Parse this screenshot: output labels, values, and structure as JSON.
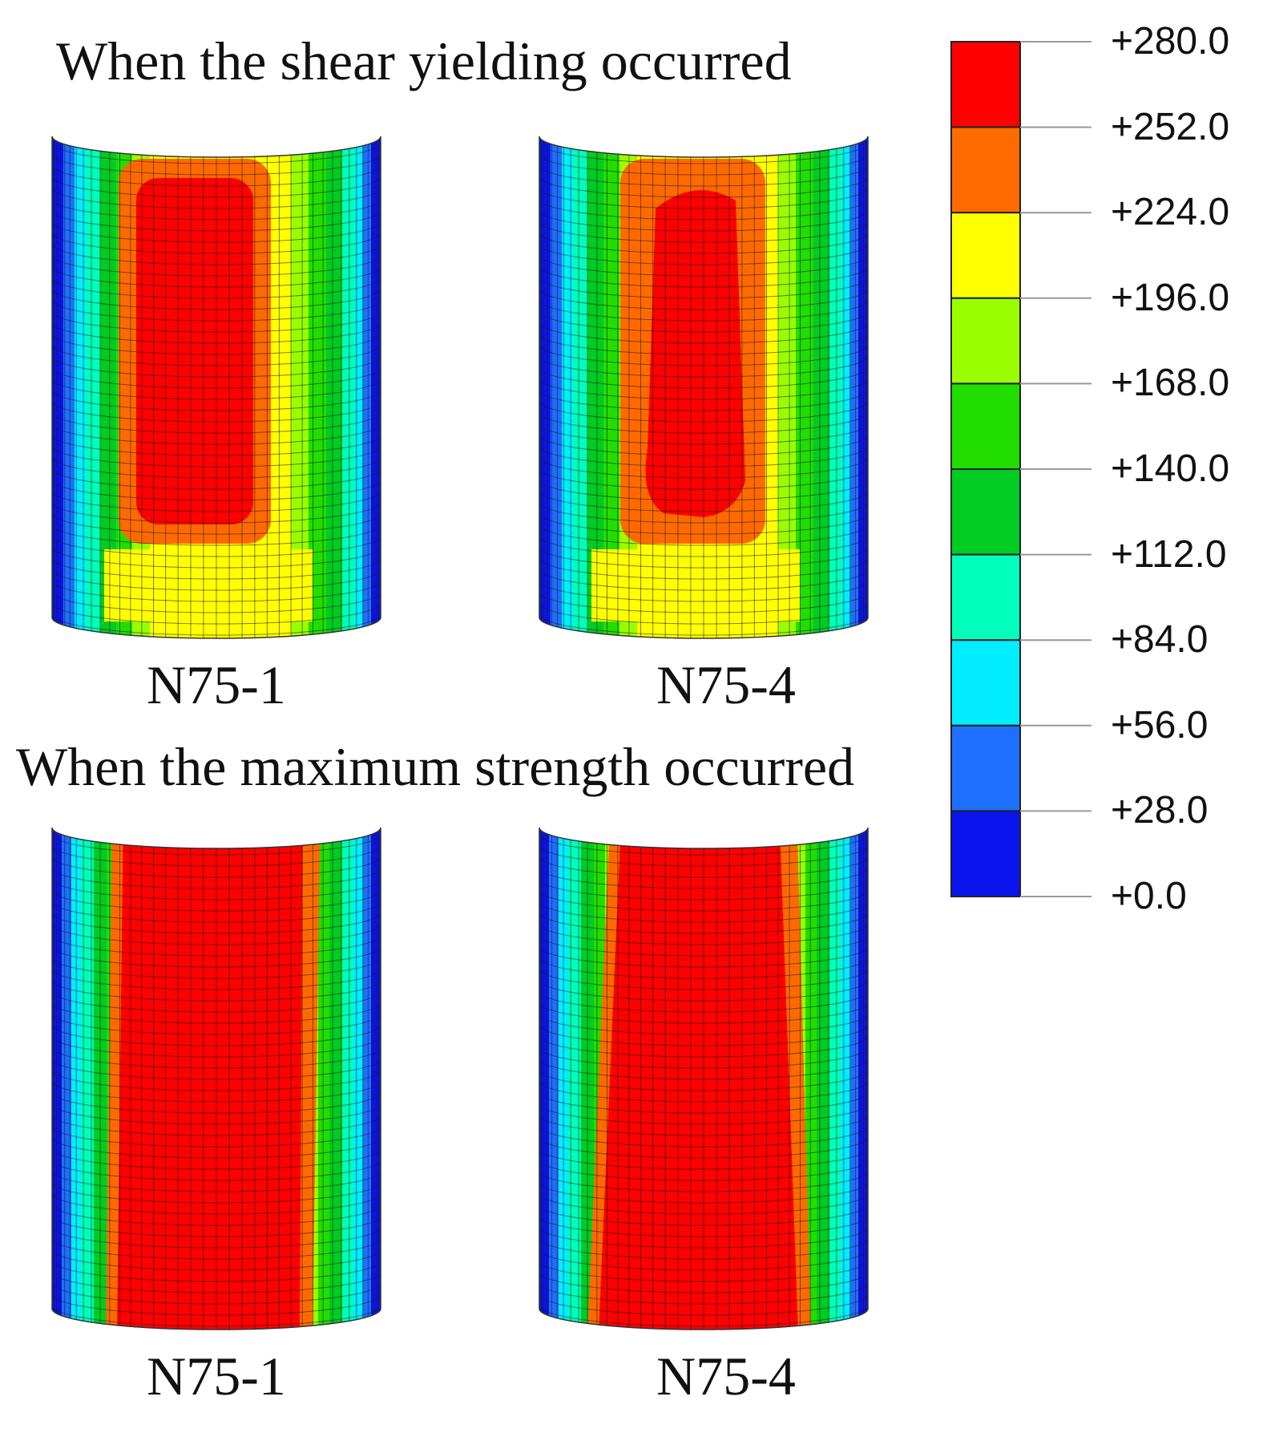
{
  "figure": {
    "top_title": "When the shear yielding occurred",
    "bottom_title": "When the maximum strength occurred",
    "panels": [
      {
        "label": "N75-1",
        "stage": "shear-yielding"
      },
      {
        "label": "N75-4",
        "stage": "shear-yielding"
      },
      {
        "label": "N75-1",
        "stage": "maximum-strength"
      },
      {
        "label": "N75-4",
        "stage": "maximum-strength"
      }
    ]
  },
  "legend": {
    "ticks": [
      "+280.0",
      "+252.0",
      "+224.0",
      "+196.0",
      "+168.0",
      "+140.0",
      "+112.0",
      "+84.0",
      "+56.0",
      "+28.0",
      "+0.0"
    ],
    "band_colors": [
      "#ff0000",
      "#ff6a00",
      "#ffff00",
      "#99ff00",
      "#22dd00",
      "#00cc22",
      "#00ffbb",
      "#00eeff",
      "#1e6fff",
      "#0a14ee"
    ]
  }
}
